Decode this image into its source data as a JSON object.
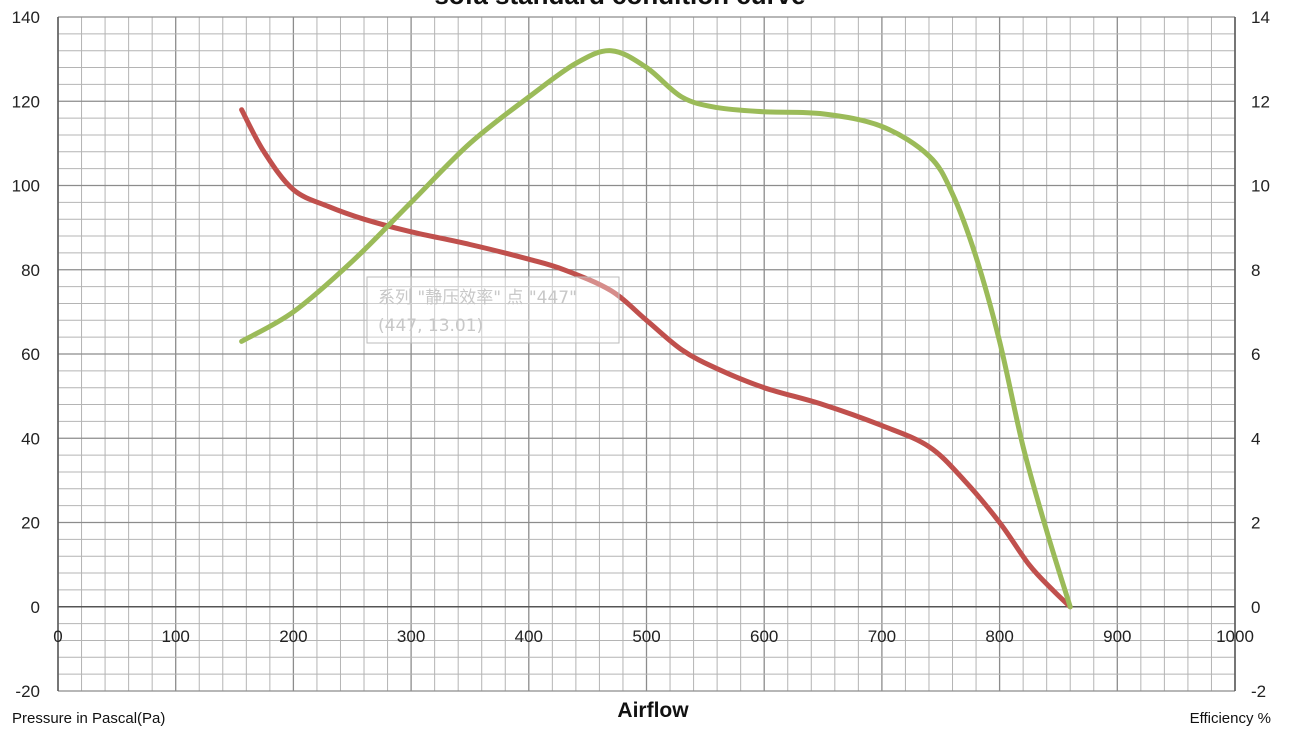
{
  "chart_data": {
    "type": "line",
    "title": "sofa standard condition curve",
    "xlabel": "Airflow",
    "ylabel_left": "Pressure in Pascal(Pa)",
    "ylabel_right": "Efficiency %",
    "xlim": [
      0,
      1000
    ],
    "ylim_left": [
      -20,
      140
    ],
    "ylim_right": [
      -2,
      14
    ],
    "x_ticks": [
      "0",
      "100",
      "200",
      "300",
      "400",
      "500",
      "600",
      "700",
      "800",
      "900",
      "1000"
    ],
    "y_left_ticks": [
      "140",
      "120",
      "100",
      "80",
      "60",
      "40",
      "20",
      "0",
      "-20"
    ],
    "y_right_ticks": [
      "14",
      "12",
      "10",
      "8",
      "6",
      "4",
      "2",
      "0",
      "-2"
    ],
    "grid": true,
    "series": [
      {
        "color": "#c0504d",
        "axis": "left",
        "points": [
          [
            156,
            118
          ],
          [
            175,
            108
          ],
          [
            200,
            99
          ],
          [
            230,
            95
          ],
          [
            260,
            92
          ],
          [
            300,
            89
          ],
          [
            350,
            86
          ],
          [
            400,
            82.5
          ],
          [
            430,
            80
          ],
          [
            470,
            75
          ],
          [
            500,
            68
          ],
          [
            530,
            61
          ],
          [
            560,
            56.5
          ],
          [
            600,
            52
          ],
          [
            650,
            48
          ],
          [
            700,
            43
          ],
          [
            740,
            38
          ],
          [
            770,
            30
          ],
          [
            800,
            20
          ],
          [
            825,
            10
          ],
          [
            845,
            4
          ],
          [
            860,
            0
          ]
        ]
      },
      {
        "color": "#9bbb59",
        "axis": "right",
        "points": [
          [
            156,
            6.3
          ],
          [
            200,
            7.0
          ],
          [
            250,
            8.2
          ],
          [
            300,
            9.6
          ],
          [
            350,
            11.0
          ],
          [
            400,
            12.1
          ],
          [
            440,
            12.9
          ],
          [
            470,
            13.2
          ],
          [
            500,
            12.8
          ],
          [
            530,
            12.1
          ],
          [
            560,
            11.85
          ],
          [
            600,
            11.75
          ],
          [
            650,
            11.7
          ],
          [
            700,
            11.4
          ],
          [
            740,
            10.7
          ],
          [
            760,
            9.8
          ],
          [
            780,
            8.3
          ],
          [
            800,
            6.3
          ],
          [
            820,
            3.8
          ],
          [
            840,
            1.8
          ],
          [
            860,
            0
          ]
        ]
      }
    ],
    "tooltip": {
      "line1": "系列 \"静压效率\" 点 \"447\"",
      "line2": "(447, 13.01)"
    }
  }
}
